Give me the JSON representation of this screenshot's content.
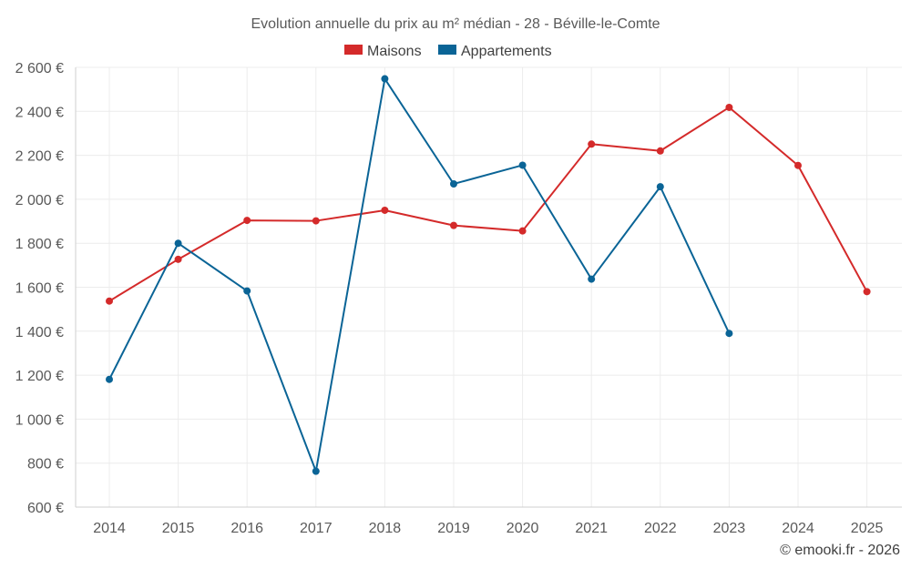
{
  "chart_data": {
    "type": "line",
    "title": "Evolution annuelle du prix au m² médian - 28 - Béville-le-Comte",
    "categories": [
      "2014",
      "2015",
      "2016",
      "2017",
      "2018",
      "2019",
      "2020",
      "2021",
      "2022",
      "2023",
      "2024",
      "2025"
    ],
    "series": [
      {
        "name": "Maisons",
        "color": "#d42a2a",
        "values": [
          1537,
          1727,
          1904,
          1902,
          1950,
          1881,
          1856,
          2251,
          2220,
          2418,
          2154,
          1580
        ]
      },
      {
        "name": "Appartements",
        "color": "#0a6496",
        "values": [
          1181,
          1800,
          1583,
          763,
          2548,
          2070,
          2155,
          1637,
          2057,
          1390,
          null,
          null
        ]
      }
    ],
    "ylim": [
      600,
      2600
    ],
    "yticks": [
      600,
      800,
      1000,
      1200,
      1400,
      1600,
      1800,
      2000,
      2200,
      2400,
      2600
    ],
    "ytick_labels": [
      "600 €",
      "800 €",
      "1 000 €",
      "1 200 €",
      "1 400 €",
      "1 600 €",
      "1 800 €",
      "2 000 €",
      "2 200 €",
      "2 400 €",
      "2 600 €"
    ],
    "xlabel": "",
    "ylabel": "",
    "grid": true,
    "legend_position": "top-center"
  },
  "credit": "© emooki.fr - 2026"
}
